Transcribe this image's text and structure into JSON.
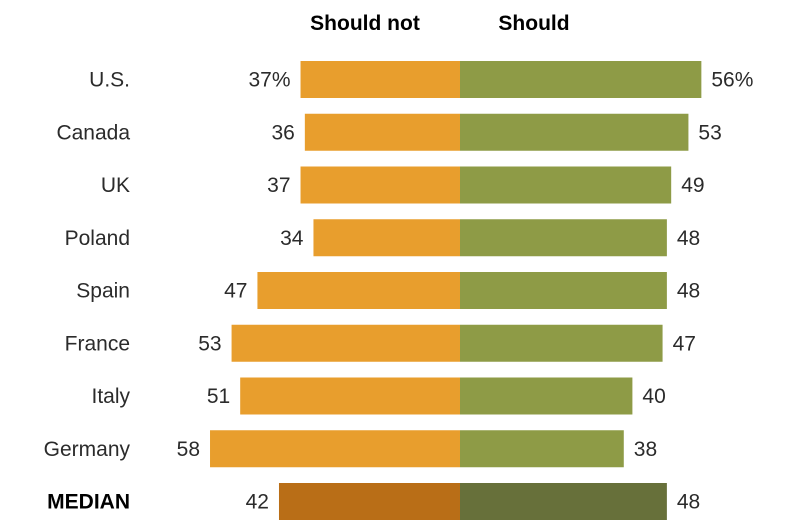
{
  "chart_data": {
    "type": "bar",
    "categories": [
      "U.S.",
      "Canada",
      "UK",
      "Poland",
      "Spain",
      "France",
      "Italy",
      "Germany",
      "MEDIAN"
    ],
    "series": [
      {
        "name": "Should not",
        "values": [
          37,
          36,
          37,
          34,
          47,
          53,
          51,
          58,
          42
        ],
        "labels": [
          "37%",
          "36",
          "37",
          "34",
          "47",
          "53",
          "51",
          "58",
          "42"
        ]
      },
      {
        "name": "Should",
        "values": [
          56,
          53,
          49,
          48,
          48,
          47,
          40,
          38,
          48
        ],
        "labels": [
          "56%",
          "53",
          "49",
          "48",
          "48",
          "47",
          "40",
          "38",
          "48"
        ]
      }
    ],
    "colors": {
      "should_not": "#E89E2D",
      "should": "#8E9B46",
      "median_should_not": "#B96E17",
      "median_should": "#67703A"
    },
    "xlim": [
      -60,
      60
    ],
    "grid": false,
    "legend": "top"
  }
}
